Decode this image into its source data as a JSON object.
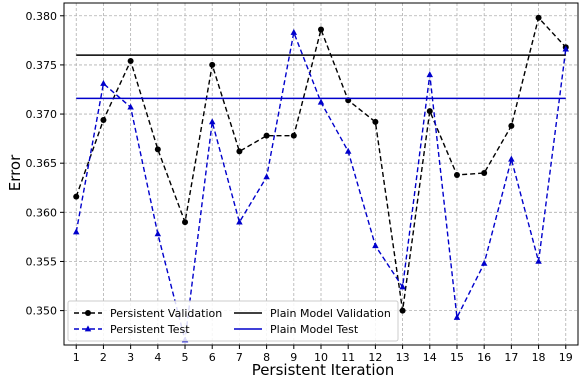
{
  "chart_data": {
    "type": "line",
    "xlabel": "Persistent Iteration",
    "ylabel": "Error",
    "x": [
      1,
      2,
      3,
      4,
      5,
      6,
      7,
      8,
      9,
      10,
      11,
      12,
      13,
      14,
      15,
      16,
      17,
      18,
      19
    ],
    "xlim": [
      0.55,
      19.45
    ],
    "ylim": [
      0.3465,
      0.3813
    ],
    "yticks": [
      0.35,
      0.355,
      0.36,
      0.365,
      0.37,
      0.375,
      0.38
    ],
    "ytick_labels": [
      "0.350",
      "0.355",
      "0.360",
      "0.365",
      "0.370",
      "0.375",
      "0.380"
    ],
    "xtick_labels": [
      "1",
      "2",
      "3",
      "4",
      "5",
      "6",
      "7",
      "8",
      "9",
      "10",
      "11",
      "12",
      "13",
      "14",
      "15",
      "16",
      "17",
      "18",
      "19"
    ],
    "grid": true,
    "legend": {
      "placement": "bottom-left",
      "columns": 2
    },
    "series": [
      {
        "name": "Persistent Validation",
        "style": "dashed",
        "marker": "circle",
        "color": "#000000",
        "values": [
          0.3616,
          0.3694,
          0.3754,
          0.3664,
          0.359,
          0.375,
          0.3662,
          0.3678,
          0.3678,
          0.3786,
          0.3714,
          0.3692,
          0.35,
          0.3703,
          0.3638,
          0.364,
          0.3688,
          0.3798,
          0.3768
        ]
      },
      {
        "name": "Persistent Test",
        "style": "dashed",
        "marker": "triangle",
        "color": "#0000cc",
        "values": [
          0.358,
          0.3731,
          0.3707,
          0.3578,
          0.347,
          0.3692,
          0.359,
          0.3636,
          0.3783,
          0.3712,
          0.3662,
          0.3566,
          0.3524,
          0.374,
          0.3493,
          0.3548,
          0.3654,
          0.355,
          0.3766
        ]
      },
      {
        "name": "Plain Model Validation",
        "style": "solid",
        "marker": "none",
        "color": "#000000",
        "constant": 0.376
      },
      {
        "name": "Plain Model Test",
        "style": "solid",
        "marker": "none",
        "color": "#0000cc",
        "constant": 0.3716
      }
    ]
  }
}
